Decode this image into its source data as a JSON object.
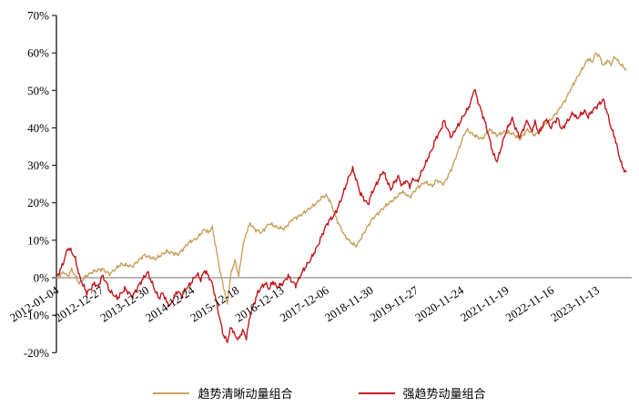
{
  "chart_data": {
    "type": "line",
    "title": "",
    "xlabel": "",
    "ylabel": "",
    "unit": "%",
    "ylim": [
      -20,
      70
    ],
    "ytick_step": 10,
    "grid": "off",
    "legend_position": "bottom-center",
    "zero_line_color": "#A0A0A0",
    "axis_color": "#000000",
    "y_ticks": [
      {
        "v": 70,
        "label": "70%"
      },
      {
        "v": 60,
        "label": "60%"
      },
      {
        "v": 50,
        "label": "50%"
      },
      {
        "v": 40,
        "label": "40%"
      },
      {
        "v": 30,
        "label": "30%"
      },
      {
        "v": 20,
        "label": "20%"
      },
      {
        "v": 10,
        "label": "10%"
      },
      {
        "v": 0,
        "label": "0%"
      },
      {
        "v": -10,
        "label": "-10%"
      },
      {
        "v": -20,
        "label": "-20%"
      }
    ],
    "x_range_months": 150,
    "x_ticks": [
      {
        "label": "2012-01-04",
        "m": 0.1
      },
      {
        "label": "2012-12-27",
        "m": 11.9
      },
      {
        "label": "2013-12-30",
        "m": 23.9
      },
      {
        "label": "2014-12-24",
        "m": 35.8
      },
      {
        "label": "2015-12-18",
        "m": 47.6
      },
      {
        "label": "2016-12-13",
        "m": 59.4
      },
      {
        "label": "2017-12-06",
        "m": 71.2
      },
      {
        "label": "2018-11-30",
        "m": 82.9
      },
      {
        "label": "2019-11-27",
        "m": 94.8
      },
      {
        "label": "2020-11-24",
        "m": 106.7
      },
      {
        "label": "2021-11-19",
        "m": 118.6
      },
      {
        "label": "2022-11-16",
        "m": 130.5
      },
      {
        "label": "2023-11-13",
        "m": 142.4
      }
    ],
    "series": [
      {
        "name": "趋势清晰动量组合",
        "color": "#C9A25E",
        "anchors": [
          [
            0,
            0
          ],
          [
            2,
            1.5
          ],
          [
            3,
            0.3
          ],
          [
            4,
            2.2
          ],
          [
            6,
            -1.5
          ],
          [
            8,
            0.6
          ],
          [
            10,
            1.8
          ],
          [
            12,
            2.3
          ],
          [
            14,
            1.0
          ],
          [
            17,
            3.6
          ],
          [
            20,
            3.0
          ],
          [
            23,
            6.0
          ],
          [
            26,
            5.0
          ],
          [
            29,
            7.0
          ],
          [
            32,
            6.2
          ],
          [
            35,
            9.5
          ],
          [
            37,
            10.5
          ],
          [
            39,
            13.0
          ],
          [
            40,
            12.0
          ],
          [
            41,
            13.5
          ],
          [
            42,
            8.0
          ],
          [
            43,
            2.0
          ],
          [
            44,
            -2.5
          ],
          [
            45,
            -7.0
          ],
          [
            46,
            1.5
          ],
          [
            47,
            4.5
          ],
          [
            48,
            0.5
          ],
          [
            49,
            8.0
          ],
          [
            50,
            12.0
          ],
          [
            51,
            14.5
          ],
          [
            52,
            13.0
          ],
          [
            54,
            12.0
          ],
          [
            56,
            14.5
          ],
          [
            58,
            13.5
          ],
          [
            60,
            13.0
          ],
          [
            62,
            15.5
          ],
          [
            64,
            16.5
          ],
          [
            66,
            18.0
          ],
          [
            68,
            19.5
          ],
          [
            70,
            21.5
          ],
          [
            71,
            22.0
          ],
          [
            72,
            20.5
          ],
          [
            74,
            15.0
          ],
          [
            76,
            11.0
          ],
          [
            78,
            9.0
          ],
          [
            79,
            8.5
          ],
          [
            81,
            12.0
          ],
          [
            83,
            15.5
          ],
          [
            85,
            17.5
          ],
          [
            87,
            19.5
          ],
          [
            89,
            21.0
          ],
          [
            91,
            23.0
          ],
          [
            93,
            21.5
          ],
          [
            95,
            24.0
          ],
          [
            97,
            25.5
          ],
          [
            99,
            24.5
          ],
          [
            100,
            26.0
          ],
          [
            102,
            25.0
          ],
          [
            104,
            29.0
          ],
          [
            106,
            34.5
          ],
          [
            107,
            37.5
          ],
          [
            108,
            39.5
          ],
          [
            110,
            38.0
          ],
          [
            112,
            37.0
          ],
          [
            114,
            39.5
          ],
          [
            116,
            38.0
          ],
          [
            118,
            39.0
          ],
          [
            120,
            38.5
          ],
          [
            122,
            37.0
          ],
          [
            124,
            39.5
          ],
          [
            126,
            38.0
          ],
          [
            128,
            40.5
          ],
          [
            130,
            42.0
          ],
          [
            132,
            44.5
          ],
          [
            134,
            47.5
          ],
          [
            136,
            51.5
          ],
          [
            138,
            55.0
          ],
          [
            140,
            58.5
          ],
          [
            141,
            57.5
          ],
          [
            142,
            60.0
          ],
          [
            143,
            59.0
          ],
          [
            144,
            56.5
          ],
          [
            145,
            58.0
          ],
          [
            146,
            57.0
          ],
          [
            147,
            59.0
          ],
          [
            148,
            57.5
          ],
          [
            149,
            56.5
          ],
          [
            150,
            55.5
          ]
        ]
      },
      {
        "name": "强趋势动量组合",
        "color": "#C2181E",
        "anchors": [
          [
            0,
            0
          ],
          [
            1,
            2.0
          ],
          [
            2,
            4.5
          ],
          [
            3,
            8.0
          ],
          [
            4,
            7.0
          ],
          [
            5,
            5.0
          ],
          [
            6,
            0.5
          ],
          [
            7,
            -2.0
          ],
          [
            8,
            -4.0
          ],
          [
            9,
            -3.0
          ],
          [
            10,
            -1.5
          ],
          [
            11,
            -2.5
          ],
          [
            12,
            0.5
          ],
          [
            13,
            -1.0
          ],
          [
            14,
            -3.5
          ],
          [
            16,
            -5.5
          ],
          [
            18,
            -3.0
          ],
          [
            20,
            -5.0
          ],
          [
            22,
            -1.5
          ],
          [
            24,
            1.5
          ],
          [
            25,
            -1.0
          ],
          [
            26,
            -3.5
          ],
          [
            27,
            -5.5
          ],
          [
            28,
            -4.0
          ],
          [
            29,
            -6.5
          ],
          [
            30,
            -7.5
          ],
          [
            31,
            -5.0
          ],
          [
            32,
            -3.5
          ],
          [
            33,
            -5.0
          ],
          [
            34,
            -3.0
          ],
          [
            35,
            -2.0
          ],
          [
            36,
            -0.5
          ],
          [
            37,
            1.0
          ],
          [
            38,
            -0.5
          ],
          [
            39,
            2.0
          ],
          [
            40,
            0.5
          ],
          [
            41,
            -1.5
          ],
          [
            42,
            -6.0
          ],
          [
            43,
            -11.0
          ],
          [
            44,
            -15.5
          ],
          [
            45,
            -17.0
          ],
          [
            46,
            -13.0
          ],
          [
            47,
            -15.5
          ],
          [
            48,
            -16.5
          ],
          [
            49,
            -14.0
          ],
          [
            50,
            -16.0
          ],
          [
            51,
            -10.0
          ],
          [
            52,
            -7.0
          ],
          [
            53,
            -4.0
          ],
          [
            54,
            -2.5
          ],
          [
            55,
            -1.5
          ],
          [
            56,
            -3.0
          ],
          [
            57,
            -1.0
          ],
          [
            58,
            -2.5
          ],
          [
            59,
            -2.0
          ],
          [
            60,
            -1.0
          ],
          [
            61,
            0.5
          ],
          [
            62,
            -1.0
          ],
          [
            63,
            -2.0
          ],
          [
            64,
            0.0
          ],
          [
            65,
            2.0
          ],
          [
            66,
            3.5
          ],
          [
            67,
            5.0
          ],
          [
            68,
            7.0
          ],
          [
            69,
            9.0
          ],
          [
            70,
            11.5
          ],
          [
            71,
            14.0
          ],
          [
            72,
            15.5
          ],
          [
            73,
            16.5
          ],
          [
            74,
            18.5
          ],
          [
            75,
            21.0
          ],
          [
            76,
            24.0
          ],
          [
            77,
            27.0
          ],
          [
            78,
            29.0
          ],
          [
            79,
            26.0
          ],
          [
            80,
            22.5
          ],
          [
            81,
            21.0
          ],
          [
            82,
            19.5
          ],
          [
            83,
            22.5
          ],
          [
            84,
            24.5
          ],
          [
            85,
            26.5
          ],
          [
            86,
            28.5
          ],
          [
            87,
            26.0
          ],
          [
            88,
            23.5
          ],
          [
            89,
            25.5
          ],
          [
            90,
            27.0
          ],
          [
            91,
            24.5
          ],
          [
            92,
            26.0
          ],
          [
            93,
            24.5
          ],
          [
            94,
            26.5
          ],
          [
            95,
            25.5
          ],
          [
            96,
            28.0
          ],
          [
            97,
            30.0
          ],
          [
            98,
            32.5
          ],
          [
            99,
            34.5
          ],
          [
            100,
            37.5
          ],
          [
            101,
            39.0
          ],
          [
            102,
            42.0
          ],
          [
            103,
            39.5
          ],
          [
            104,
            37.5
          ],
          [
            105,
            39.5
          ],
          [
            106,
            41.0
          ],
          [
            107,
            43.0
          ],
          [
            108,
            44.5
          ],
          [
            109,
            46.5
          ],
          [
            110,
            50.5
          ],
          [
            111,
            47.0
          ],
          [
            112,
            44.0
          ],
          [
            113,
            41.0
          ],
          [
            114,
            37.0
          ],
          [
            115,
            33.0
          ],
          [
            116,
            31.0
          ],
          [
            117,
            34.5
          ],
          [
            118,
            38.0
          ],
          [
            119,
            40.5
          ],
          [
            120,
            42.5
          ],
          [
            121,
            39.5
          ],
          [
            122,
            37.5
          ],
          [
            123,
            40.0
          ],
          [
            124,
            42.0
          ],
          [
            125,
            39.0
          ],
          [
            126,
            41.5
          ],
          [
            127,
            38.5
          ],
          [
            128,
            40.5
          ],
          [
            129,
            42.5
          ],
          [
            130,
            40.0
          ],
          [
            131,
            41.5
          ],
          [
            132,
            42.5
          ],
          [
            133,
            39.5
          ],
          [
            134,
            41.0
          ],
          [
            135,
            42.5
          ],
          [
            136,
            44.0
          ],
          [
            137,
            42.5
          ],
          [
            138,
            43.5
          ],
          [
            139,
            44.5
          ],
          [
            140,
            43.0
          ],
          [
            141,
            44.5
          ],
          [
            142,
            45.5
          ],
          [
            143,
            46.5
          ],
          [
            144,
            47.5
          ],
          [
            145,
            44.0
          ],
          [
            146,
            40.0
          ],
          [
            147,
            37.5
          ],
          [
            148,
            33.0
          ],
          [
            149,
            29.5
          ],
          [
            150,
            28.0
          ]
        ]
      }
    ]
  },
  "legend": {
    "items": [
      {
        "label": "趋势清晰动量组合",
        "color": "#C9A25E"
      },
      {
        "label": "强趋势动量组合",
        "color": "#C2181E"
      }
    ]
  }
}
